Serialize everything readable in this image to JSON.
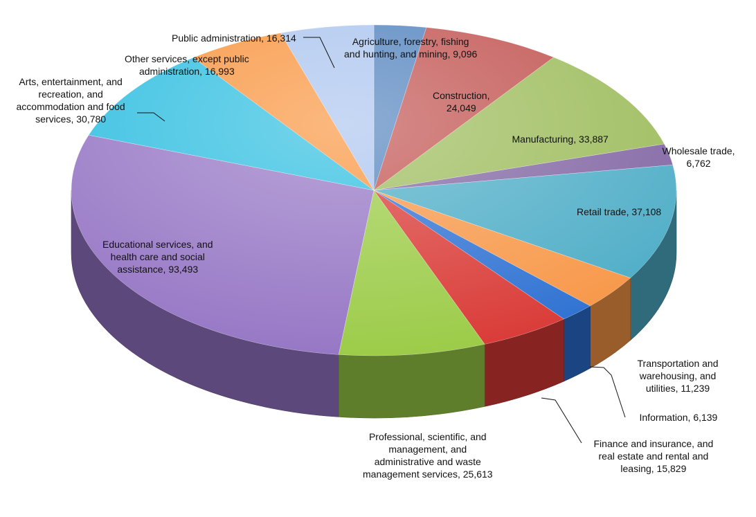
{
  "chart_data": {
    "type": "pie",
    "title": "",
    "legend": "none",
    "slices": [
      {
        "label": "Agriculture, forestry, fishing and hunting, and mining",
        "value": 9096,
        "label_lines": [
          "Agriculture, forestry, fishing",
          "and hunting, and mining, 9,096"
        ],
        "color": "#4f81bd"
      },
      {
        "label": "Construction",
        "value": 24049,
        "label_lines": [
          "Construction,",
          "24,049"
        ],
        "color": "#c0504d"
      },
      {
        "label": "Manufacturing",
        "value": 33887,
        "label_lines": [
          "Manufacturing, 33,887"
        ],
        "color": "#9bbb59"
      },
      {
        "label": "Wholesale trade",
        "value": 6762,
        "label_lines": [
          "Wholesale trade,",
          "6,762"
        ],
        "color": "#8064a2"
      },
      {
        "label": "Retail trade",
        "value": 37108,
        "label_lines": [
          "Retail trade, 37,108"
        ],
        "color": "#4bacc6"
      },
      {
        "label": "Transportation and warehousing, and utilities",
        "value": 11239,
        "label_lines": [
          "Transportation and",
          "warehousing, and",
          "utilities, 11,239"
        ],
        "color": "#f79646"
      },
      {
        "label": "Information",
        "value": 6139,
        "label_lines": [
          "Information, 6,139"
        ],
        "color": "#2c70d2"
      },
      {
        "label": "Finance and insurance, and real estate and rental and leasing",
        "value": 15829,
        "label_lines": [
          "Finance and insurance, and",
          "real estate and rental and",
          "leasing, 15,829"
        ],
        "color": "#d93834"
      },
      {
        "label": "Professional, scientific, and management, and administrative and waste management services",
        "value": 25613,
        "label_lines": [
          "Professional, scientific, and",
          "management, and",
          "administrative and waste",
          "management services, 25,613"
        ],
        "color": "#9acb45"
      },
      {
        "label": "Educational services, and health care and social assistance",
        "value": 93493,
        "label_lines": [
          "Educational services, and",
          "health care and social",
          "assistance, 93,493"
        ],
        "color": "#9474c4"
      },
      {
        "label": "Arts, entertainment, and recreation, and accommodation and food services",
        "value": 30780,
        "label_lines": [
          "Arts, entertainment, and",
          "recreation, and",
          "accommodation and food",
          "services, 30,780"
        ],
        "color": "#2bbde0"
      },
      {
        "label": "Other services, except public administration",
        "value": 16993,
        "label_lines": [
          "Other services, except public",
          "administration, 16,993"
        ],
        "color": "#f9923a"
      },
      {
        "label": "Public administration",
        "value": 16314,
        "label_lines": [
          "Public administration, 16,314"
        ],
        "color": "#a9c3ee"
      }
    ]
  }
}
